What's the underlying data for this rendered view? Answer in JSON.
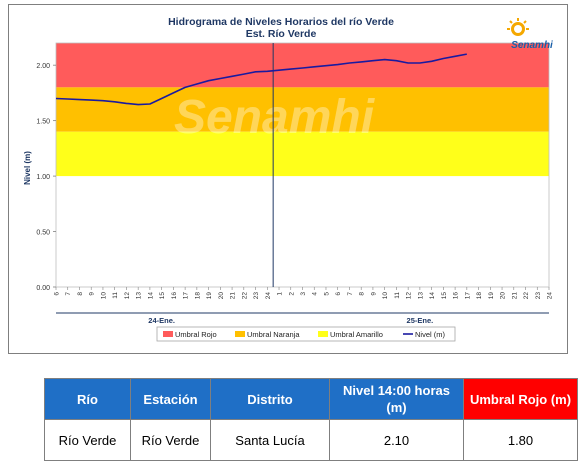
{
  "chart_data": {
    "type": "line",
    "title": "Hidrograma de Niveles Horarios del río Verde",
    "subtitle": "Est. Río Verde",
    "ylabel": "Nivel (m)",
    "xlabel": "",
    "ylim": [
      0,
      2.2
    ],
    "y_ticks": [
      "0.00",
      "0.50",
      "1.00",
      "1.50",
      "2.00"
    ],
    "x_ticks": [
      "6",
      "7",
      "8",
      "9",
      "10",
      "11",
      "12",
      "13",
      "14",
      "15",
      "16",
      "17",
      "18",
      "19",
      "20",
      "21",
      "22",
      "23",
      "24",
      "1",
      "2",
      "3",
      "4",
      "5",
      "6",
      "7",
      "8",
      "9",
      "10",
      "11",
      "12",
      "13",
      "14",
      "15",
      "16",
      "17",
      "18",
      "19",
      "20",
      "21",
      "22",
      "23",
      "24"
    ],
    "day_labels": [
      "24-Ene.",
      "25-Ene."
    ],
    "now_marker_index": 18.5,
    "bands": [
      {
        "name": "Umbral Rojo",
        "from": 1.8,
        "to": 2.2,
        "color": "#ff5b5b"
      },
      {
        "name": "Umbral Naranja",
        "from": 1.4,
        "to": 1.8,
        "color": "#ffc000"
      },
      {
        "name": "Umbral Amarillo",
        "from": 1.0,
        "to": 1.4,
        "color": "#ffff1a"
      }
    ],
    "series": [
      {
        "name": "Nivel (m)",
        "color": "#1a1aa0",
        "values": [
          1.7,
          1.695,
          1.69,
          1.685,
          1.68,
          1.67,
          1.655,
          1.645,
          1.65,
          1.7,
          1.75,
          1.8,
          1.83,
          1.86,
          1.88,
          1.9,
          1.92,
          1.94,
          1.945,
          1.955,
          1.965,
          1.975,
          1.985,
          1.995,
          2.005,
          2.02,
          2.03,
          2.04,
          2.05,
          2.04,
          2.02,
          2.02,
          2.035,
          2.06,
          2.08,
          2.1
        ]
      }
    ],
    "legend": [
      {
        "name": "Umbral Rojo",
        "color": "#ff5b5b",
        "kind": "box"
      },
      {
        "name": "Umbral Naranja",
        "color": "#ffc000",
        "kind": "box"
      },
      {
        "name": "Umbral Amarillo",
        "color": "#ffff1a",
        "kind": "box"
      },
      {
        "name": "Nivel (m)",
        "color": "#1a1aa0",
        "kind": "line"
      }
    ],
    "legend_position": "bottom",
    "grid": false
  },
  "logo": {
    "text": "Senamhi",
    "watermark": "Senamhi"
  },
  "table": {
    "headers": [
      "Río",
      "Estación",
      "Distrito",
      "Nivel 14:00 horas (m)",
      "Umbral Rojo (m)"
    ],
    "rows": [
      [
        "Río Verde",
        "Río Verde",
        "Santa Lucía",
        "2.10",
        "1.80"
      ]
    ]
  }
}
